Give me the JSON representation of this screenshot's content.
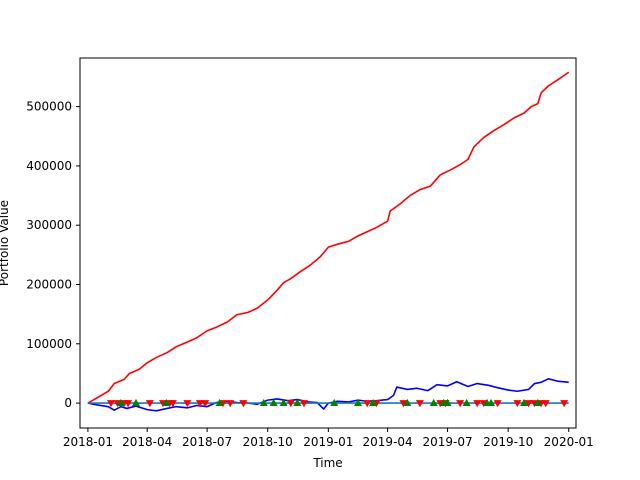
{
  "chart_data": {
    "type": "line",
    "title": "",
    "xlabel": "Time",
    "ylabel": "Portfolio Value",
    "grid": false,
    "legend": "none",
    "xlim": [
      "2017-12-20",
      "2020-01-12"
    ],
    "ylim": [
      -42000,
      582000
    ],
    "x_ticks": [
      "2018-01",
      "2018-04",
      "2018-07",
      "2018-10",
      "2019-01",
      "2019-04",
      "2019-07",
      "2019-10",
      "2020-01"
    ],
    "y_ticks": [
      0,
      100000,
      200000,
      300000,
      400000,
      500000
    ],
    "series": [
      {
        "color": "#ff0000",
        "points": [
          [
            "2018-01-01",
            0
          ],
          [
            "2018-01-15",
            9000
          ],
          [
            "2018-02-01",
            20000
          ],
          [
            "2018-02-10",
            33000
          ],
          [
            "2018-02-25",
            40000
          ],
          [
            "2018-03-05",
            50000
          ],
          [
            "2018-03-20",
            57000
          ],
          [
            "2018-04-01",
            68000
          ],
          [
            "2018-04-15",
            77000
          ],
          [
            "2018-05-01",
            85000
          ],
          [
            "2018-05-15",
            95000
          ],
          [
            "2018-06-01",
            103000
          ],
          [
            "2018-06-15",
            110000
          ],
          [
            "2018-07-01",
            122000
          ],
          [
            "2018-07-15",
            128000
          ],
          [
            "2018-08-01",
            137000
          ],
          [
            "2018-08-15",
            149000
          ],
          [
            "2018-09-01",
            153000
          ],
          [
            "2018-09-15",
            160000
          ],
          [
            "2018-10-01",
            174000
          ],
          [
            "2018-10-15",
            190000
          ],
          [
            "2018-10-25",
            203000
          ],
          [
            "2018-11-05",
            210000
          ],
          [
            "2018-11-20",
            222000
          ],
          [
            "2018-12-05",
            233000
          ],
          [
            "2018-12-20",
            247000
          ],
          [
            "2019-01-01",
            263000
          ],
          [
            "2019-01-15",
            268000
          ],
          [
            "2019-02-01",
            273000
          ],
          [
            "2019-02-15",
            282000
          ],
          [
            "2019-03-01",
            289000
          ],
          [
            "2019-03-15",
            296000
          ],
          [
            "2019-04-01",
            307000
          ],
          [
            "2019-04-05",
            324000
          ],
          [
            "2019-04-20",
            336000
          ],
          [
            "2019-05-05",
            350000
          ],
          [
            "2019-05-20",
            360000
          ],
          [
            "2019-06-05",
            366000
          ],
          [
            "2019-06-20",
            385000
          ],
          [
            "2019-07-05",
            393000
          ],
          [
            "2019-07-20",
            402000
          ],
          [
            "2019-08-01",
            411000
          ],
          [
            "2019-08-10",
            432000
          ],
          [
            "2019-08-25",
            448000
          ],
          [
            "2019-09-10",
            460000
          ],
          [
            "2019-09-25",
            470000
          ],
          [
            "2019-10-10",
            481000
          ],
          [
            "2019-10-25",
            489000
          ],
          [
            "2019-11-05",
            500000
          ],
          [
            "2019-11-15",
            505000
          ],
          [
            "2019-11-20",
            523000
          ],
          [
            "2019-12-01",
            535000
          ],
          [
            "2019-12-15",
            545000
          ],
          [
            "2020-01-01",
            558000
          ]
        ]
      },
      {
        "color": "#0000ff",
        "points": [
          [
            "2018-01-01",
            0
          ],
          [
            "2018-01-10",
            -2000
          ],
          [
            "2018-01-20",
            -4000
          ],
          [
            "2018-02-01",
            -6000
          ],
          [
            "2018-02-10",
            -12000
          ],
          [
            "2018-02-20",
            -6000
          ],
          [
            "2018-03-01",
            -9000
          ],
          [
            "2018-03-15",
            -5000
          ],
          [
            "2018-04-01",
            -11000
          ],
          [
            "2018-04-15",
            -13000
          ],
          [
            "2018-05-01",
            -9000
          ],
          [
            "2018-05-15",
            -6000
          ],
          [
            "2018-06-01",
            -8000
          ],
          [
            "2018-06-15",
            -4000
          ],
          [
            "2018-07-01",
            -6000
          ],
          [
            "2018-07-15",
            1000
          ],
          [
            "2018-08-01",
            3000
          ],
          [
            "2018-08-15",
            1000
          ],
          [
            "2018-09-01",
            0
          ],
          [
            "2018-09-15",
            -2000
          ],
          [
            "2018-10-01",
            5000
          ],
          [
            "2018-10-15",
            7000
          ],
          [
            "2018-11-01",
            4000
          ],
          [
            "2018-11-15",
            6000
          ],
          [
            "2018-12-01",
            2000
          ],
          [
            "2018-12-15",
            1000
          ],
          [
            "2018-12-25",
            -10000
          ],
          [
            "2019-01-01",
            0
          ],
          [
            "2019-01-15",
            3000
          ],
          [
            "2019-02-01",
            2000
          ],
          [
            "2019-02-15",
            5000
          ],
          [
            "2019-03-01",
            3000
          ],
          [
            "2019-03-15",
            4000
          ],
          [
            "2019-04-01",
            6000
          ],
          [
            "2019-04-10",
            13000
          ],
          [
            "2019-04-15",
            27000
          ],
          [
            "2019-05-01",
            23000
          ],
          [
            "2019-05-15",
            25000
          ],
          [
            "2019-06-01",
            21000
          ],
          [
            "2019-06-15",
            31000
          ],
          [
            "2019-07-01",
            29000
          ],
          [
            "2019-07-15",
            36000
          ],
          [
            "2019-08-01",
            28000
          ],
          [
            "2019-08-15",
            33000
          ],
          [
            "2019-09-01",
            30000
          ],
          [
            "2019-09-15",
            26000
          ],
          [
            "2019-10-01",
            22000
          ],
          [
            "2019-10-15",
            20000
          ],
          [
            "2019-11-01",
            23000
          ],
          [
            "2019-11-10",
            33000
          ],
          [
            "2019-11-20",
            35000
          ],
          [
            "2019-12-01",
            41000
          ],
          [
            "2019-12-15",
            37000
          ],
          [
            "2020-01-01",
            35000
          ]
        ]
      },
      {
        "color": "#1f77b4",
        "points": [
          [
            "2018-01-01",
            0
          ],
          [
            "2020-01-01",
            0
          ]
        ]
      }
    ],
    "sell_markers": {
      "color": "#ff0000",
      "shape": "triangle-down",
      "y": 0,
      "x": [
        "2018-02-05",
        "2018-02-15",
        "2018-02-25",
        "2018-03-03",
        "2018-04-05",
        "2018-04-25",
        "2018-05-05",
        "2018-05-10",
        "2018-06-01",
        "2018-06-20",
        "2018-06-28",
        "2018-07-25",
        "2018-08-05",
        "2018-08-25",
        "2018-11-05",
        "2018-11-25",
        "2019-03-01",
        "2019-03-15",
        "2019-04-25",
        "2019-05-20",
        "2019-06-20",
        "2019-06-28",
        "2019-07-20",
        "2019-08-15",
        "2019-08-25",
        "2019-09-15",
        "2019-10-15",
        "2019-11-01",
        "2019-11-10",
        "2019-11-20",
        "2019-11-27",
        "2019-12-25"
      ]
    },
    "buy_markers": {
      "color": "#008000",
      "shape": "triangle-up",
      "y": 0,
      "x": [
        "2018-02-20",
        "2018-03-15",
        "2018-04-30",
        "2018-07-20",
        "2018-09-25",
        "2018-10-10",
        "2018-10-25",
        "2018-11-15",
        "2019-01-10",
        "2019-02-15",
        "2019-03-10",
        "2019-05-01",
        "2019-06-10",
        "2019-06-25",
        "2019-07-01",
        "2019-07-30",
        "2019-08-30",
        "2019-09-05",
        "2019-10-25",
        "2019-11-15"
      ]
    }
  }
}
